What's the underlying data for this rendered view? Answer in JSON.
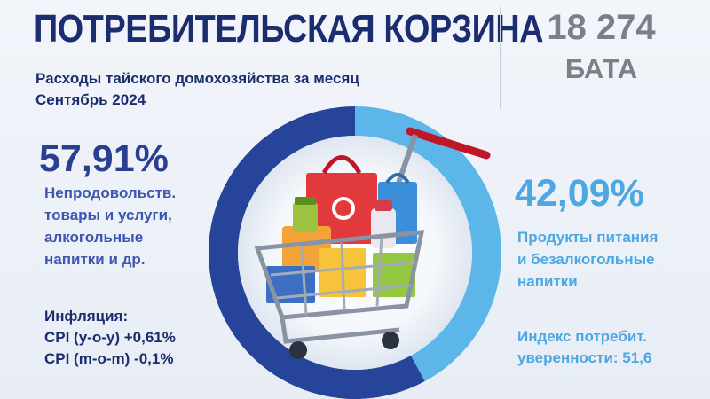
{
  "header": {
    "title": "ПОТРЕБИТЕЛЬСКАЯ КОРЗИНА",
    "subtitle_line1": "Расходы тайского домохозяйства за месяц",
    "subtitle_line2": "Сентябрь 2024",
    "total_value": "18 274",
    "total_currency": "БАТА"
  },
  "left_block": {
    "percent": "57,91%",
    "desc_lines": [
      "Непродовольств.",
      "товары и услуги,",
      "алкогольные",
      "напитки и др."
    ],
    "inflation_title": "Инфляция:",
    "cpi_yoy": "CPI (y-o-y) +0,61%",
    "cpi_mom": "CPI (m-o-m) -0,1%"
  },
  "right_block": {
    "percent": "42,09%",
    "desc_lines": [
      "Продукты питания",
      "и безалкогольные",
      "напитки"
    ],
    "confidence_line1": "Индекс потребит.",
    "confidence_line2": "уверенности: 51,6"
  },
  "colors": {
    "dark": "#1b2d6e",
    "nonfood": "#26449a",
    "food": "#5cb6ea",
    "gray": "#7b7f86"
  },
  "icons": {
    "center_illustration": "shopping-cart-icon"
  },
  "chart_data": {
    "type": "pie",
    "style": "donut",
    "categories": [
      "Непродовольств. товары и услуги, алкогольные напитки и др.",
      "Продукты питания и безалкогольные напитки"
    ],
    "values": [
      57.91,
      42.09
    ],
    "unit": "%",
    "colors": [
      "#26449a",
      "#5cb6ea"
    ]
  }
}
